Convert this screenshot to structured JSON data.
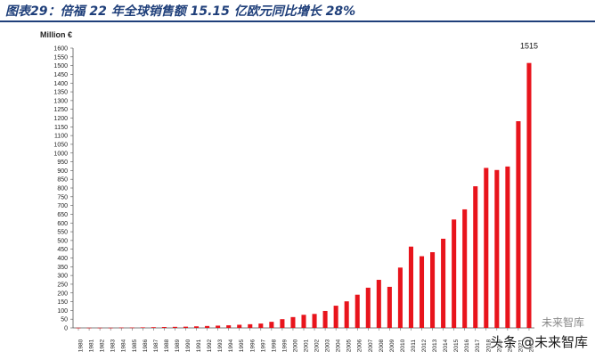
{
  "header": {
    "title": "图表29：倍福 22 年全球销售额 15.15 亿欧元同比增长 28%"
  },
  "chart_data": {
    "type": "bar",
    "unit_label": "Million €",
    "categories": [
      "1980",
      "1981",
      "1982",
      "1983",
      "1984",
      "1985",
      "1986",
      "1987",
      "1988",
      "1989",
      "1990",
      "1991",
      "1992",
      "1993",
      "1994",
      "1995",
      "1996",
      "1997",
      "1998",
      "1999",
      "2000",
      "2001",
      "2002",
      "2003",
      "2004",
      "2005",
      "2006",
      "2007",
      "2008",
      "2009",
      "2010",
      "2011",
      "2012",
      "2013",
      "2014",
      "2015",
      "2016",
      "2017",
      "2018",
      "2019",
      "2020",
      "2021",
      "2022"
    ],
    "values": [
      1,
      1,
      1,
      1,
      2,
      2,
      3,
      4,
      5,
      6,
      7,
      9,
      11,
      13,
      15,
      18,
      21,
      25,
      35,
      50,
      62,
      75,
      80,
      97,
      127,
      152,
      190,
      230,
      275,
      235,
      345,
      465,
      410,
      433,
      510,
      620,
      678,
      810,
      915,
      903,
      923,
      1182,
      1515
    ],
    "ylim": [
      0,
      1600
    ],
    "yticks": [
      0,
      50,
      100,
      150,
      200,
      250,
      300,
      350,
      400,
      450,
      500,
      550,
      600,
      650,
      700,
      750,
      800,
      850,
      900,
      950,
      1000,
      1050,
      1100,
      1150,
      1200,
      1250,
      1300,
      1350,
      1400,
      1450,
      1500,
      1550,
      1600
    ],
    "value_labels": [
      {
        "category": "2022",
        "text": "1515"
      }
    ],
    "bar_color": "#e8141c",
    "grid": false
  },
  "watermark": {
    "top_text": "未来智库",
    "main_text": "头条 @未来智库"
  }
}
